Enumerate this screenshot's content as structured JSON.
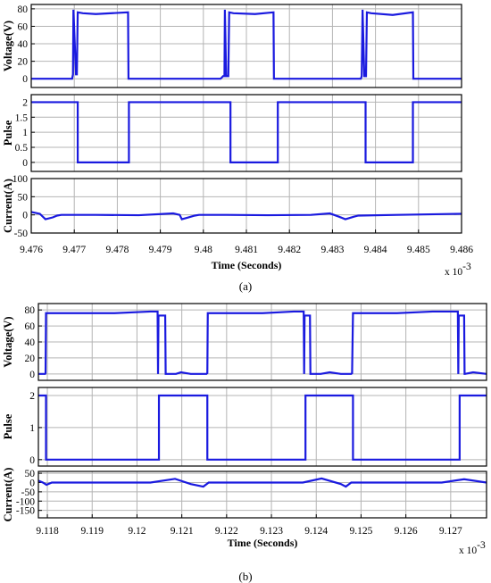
{
  "figure": {
    "colors": {
      "series": "#1a1adf",
      "axis": "#000000",
      "grid": "#b4b4b4",
      "background": "#ffffff"
    },
    "multiplier_base": "x 10",
    "multiplier_exp": "-3"
  },
  "chart_data": [
    {
      "type": "line",
      "panel": "a",
      "caption": "(a)",
      "xlabel": "Time (Seconds)",
      "xticks": [
        "9.476",
        "9.477",
        "9.478",
        "9.479",
        "9.48",
        "9.481",
        "9.482",
        "9.483",
        "9.484",
        "9.485",
        "9.486"
      ],
      "xlim": [
        9.476,
        9.486
      ],
      "x_multiplier": "x 10^-3",
      "grid": true,
      "subplots": [
        {
          "ylabel": "Voltage(V)",
          "ylim": [
            -10,
            85
          ],
          "yticks": [
            "0",
            "20",
            "40",
            "60",
            "80"
          ],
          "series": [
            {
              "x": [
                9.476,
                9.47695,
                9.47697,
                9.47698,
                9.47704,
                9.47706,
                9.47708,
                9.4772,
                9.4775,
                9.47825,
                9.47826,
                9.4783,
                9.4789,
                9.4797,
                9.4804,
                9.48046,
                9.48049,
                9.4805,
                9.48053,
                9.48058,
                9.4806,
                9.4807,
                9.4812,
                9.48163,
                9.48164,
                9.4817,
                9.4825,
                9.4832,
                9.48366,
                9.48368,
                9.4837,
                9.48374,
                9.48378,
                9.4838,
                9.4839,
                9.4844,
                9.48487,
                9.48488,
                9.4849,
                9.486
              ],
              "y": [
                0,
                0,
                5,
                79,
                5,
                5,
                76,
                75,
                74,
                76,
                0,
                0,
                0,
                0,
                0,
                3,
                3,
                79,
                3,
                3,
                76,
                75,
                74,
                76,
                0,
                0,
                0,
                0,
                0,
                3,
                79,
                3,
                3,
                76,
                75,
                73,
                76,
                0,
                0,
                0
              ]
            }
          ]
        },
        {
          "ylabel": "Pulse",
          "ylim": [
            -0.3,
            2.25
          ],
          "yticks": [
            "0",
            "0.5",
            "1",
            "1.5",
            "2"
          ],
          "series": [
            {
              "x": [
                9.476,
                9.47708,
                9.47708,
                9.47827,
                9.47827,
                9.48063,
                9.48063,
                9.48173,
                9.48173,
                9.48377,
                9.48377,
                9.48487,
                9.48487,
                9.486
              ],
              "y": [
                2,
                2,
                0,
                0,
                2,
                2,
                0,
                0,
                2,
                2,
                0,
                0,
                2,
                2
              ]
            }
          ]
        },
        {
          "ylabel": "Current(A)",
          "ylim": [
            -50,
            100
          ],
          "yticks": [
            "-50",
            "0",
            "50",
            "100"
          ],
          "series": [
            {
              "x": [
                9.476,
                9.4762,
                9.47633,
                9.4765,
                9.4766,
                9.4767,
                9.4775,
                9.4785,
                9.4793,
                9.47945,
                9.4795,
                9.47965,
                9.4798,
                9.4799,
                9.4805,
                9.4815,
                9.4825,
                9.48294,
                9.48315,
                9.4833,
                9.4835,
                9.4836,
                9.4845,
                9.486
              ],
              "y": [
                8,
                3,
                -12,
                -7,
                -2,
                0,
                0,
                -1,
                4,
                0,
                -12,
                -7,
                -2,
                0,
                0,
                -1,
                0,
                4,
                -5,
                -12,
                -5,
                -2,
                0,
                3
              ]
            }
          ]
        }
      ]
    },
    {
      "type": "line",
      "panel": "b",
      "caption": "(b)",
      "xlabel": "Time (Seconds)",
      "xticks": [
        "9.118",
        "9.119",
        "9.12",
        "9.121",
        "9.122",
        "9.123",
        "9.124",
        "9.125",
        "9.126",
        "9.127"
      ],
      "xlim": [
        9.1178,
        9.1278
      ],
      "x_multiplier": "x 10^-3",
      "grid": true,
      "subplots": [
        {
          "ylabel": "Voltage(V)",
          "ylim": [
            -8,
            88
          ],
          "yticks": [
            "0",
            "20",
            "40",
            "60",
            "80"
          ],
          "series": [
            {
              "x": [
                9.1178,
                9.11795,
                9.11796,
                9.11797,
                9.1195,
                9.1203,
                9.12046,
                9.12047,
                9.12048,
                9.12063,
                9.12064,
                9.12065,
                9.12087,
                9.12098,
                9.1212,
                9.12155,
                9.12157,
                9.12158,
                9.1228,
                9.1235,
                9.12372,
                9.12373,
                9.12374,
                9.12386,
                9.12387,
                9.12388,
                9.1241,
                9.1243,
                9.12455,
                9.12478,
                9.1248,
                9.12482,
                9.1258,
                9.1266,
                9.12716,
                9.12717,
                9.12718,
                9.1273,
                9.12731,
                9.12732,
                9.1275,
                9.1278
              ],
              "y": [
                0,
                0,
                1,
                76,
                76,
                78,
                78,
                0,
                73,
                73,
                0,
                0,
                0,
                2,
                0,
                0,
                1,
                76,
                76,
                78,
                78,
                0,
                73,
                73,
                0,
                0,
                0,
                2,
                0,
                0,
                1,
                76,
                76,
                78,
                78,
                0,
                73,
                73,
                0,
                0,
                2,
                0
              ]
            }
          ]
        },
        {
          "ylabel": "Pulse",
          "ylim": [
            -0.2,
            2.25
          ],
          "yticks": [
            "0",
            "1",
            "2"
          ],
          "series": [
            {
              "x": [
                9.1178,
                9.11797,
                9.11797,
                9.12049,
                9.12049,
                9.12157,
                9.12157,
                9.12376,
                9.12376,
                9.12482,
                9.12482,
                9.1272,
                9.1272,
                9.1278
              ],
              "y": [
                2,
                2,
                0,
                0,
                2,
                2,
                0,
                0,
                2,
                2,
                0,
                0,
                2,
                2
              ]
            }
          ]
        },
        {
          "ylabel": "Current(A)",
          "ylim": [
            -190,
            60
          ],
          "yticks": [
            "50",
            "0",
            "-50",
            "-100",
            "-150"
          ],
          "series": [
            {
              "x": [
                9.1178,
                9.1179,
                9.11798,
                9.1181,
                9.1203,
                9.12085,
                9.1212,
                9.12148,
                9.1216,
                9.12185,
                9.1237,
                9.12412,
                9.12455,
                9.12466,
                9.12478,
                9.12505,
                9.1268,
                9.1273,
                9.1278
              ],
              "y": [
                10,
                0,
                -12,
                0,
                0,
                20,
                -8,
                -22,
                0,
                0,
                0,
                22,
                -8,
                -22,
                0,
                0,
                0,
                18,
                0
              ]
            }
          ]
        }
      ]
    }
  ]
}
